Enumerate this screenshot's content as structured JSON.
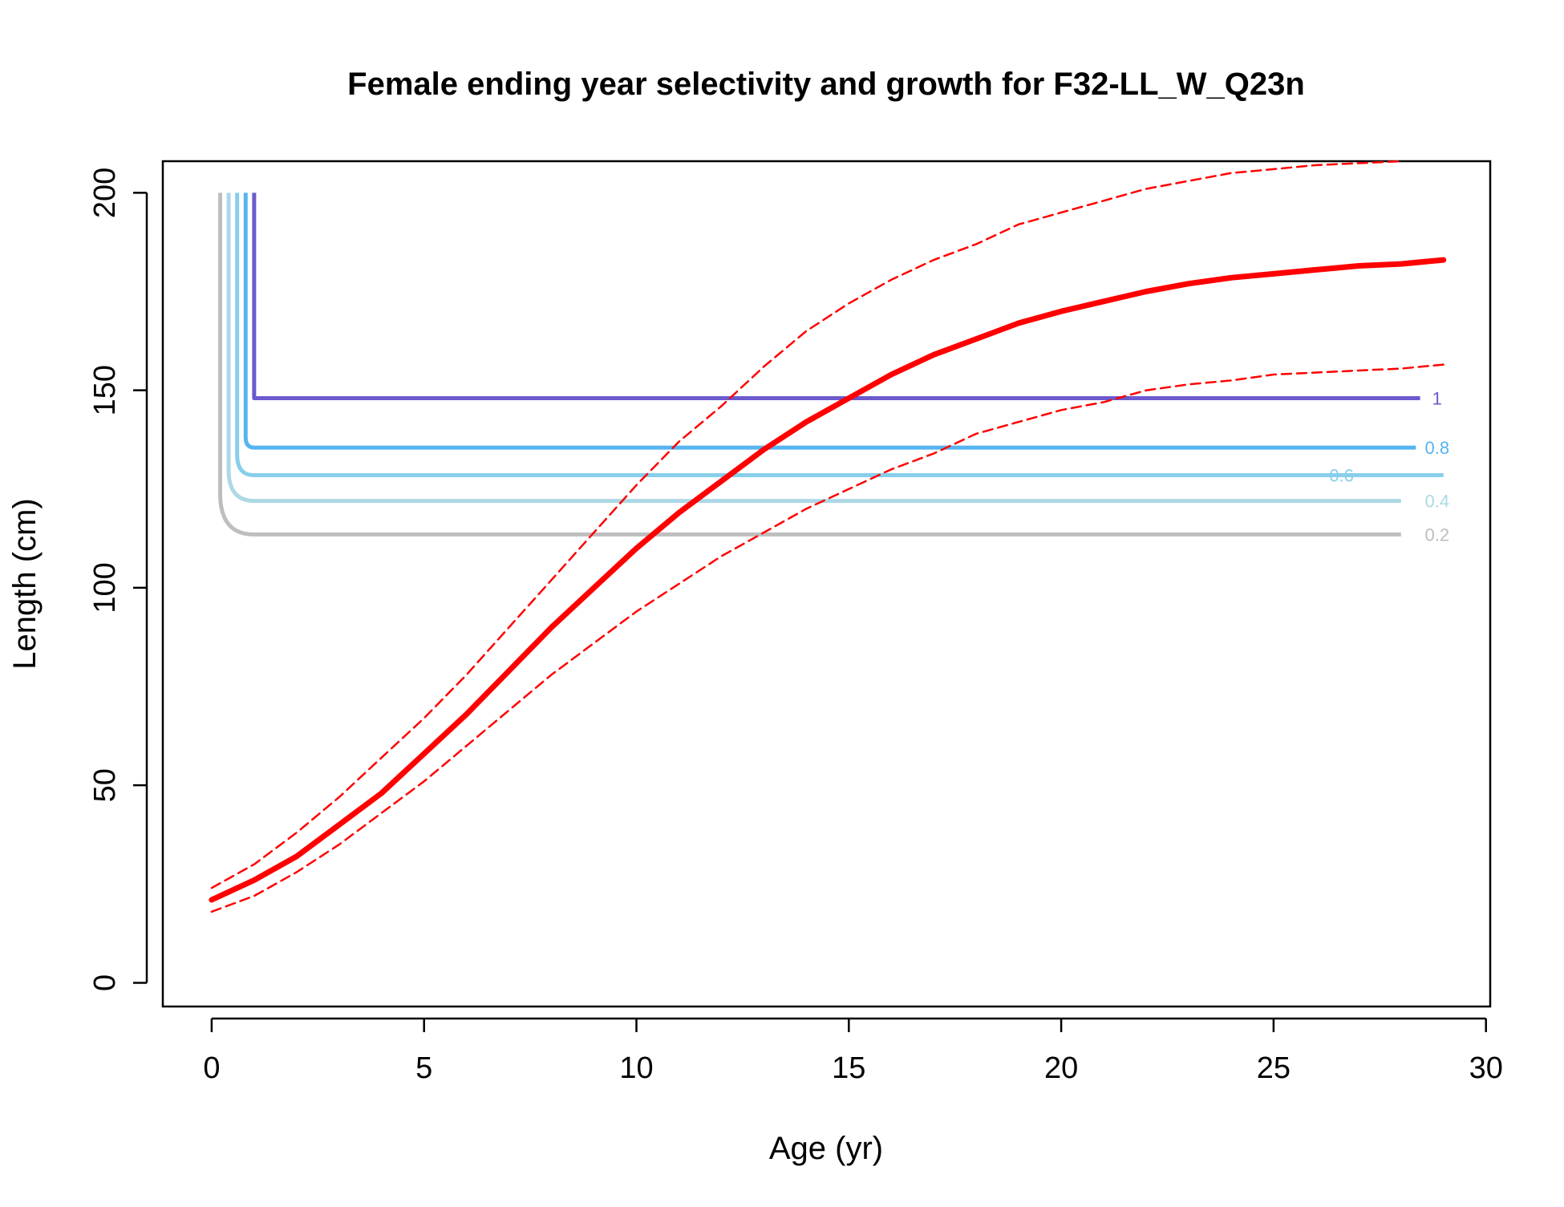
{
  "chart_data": {
    "type": "line",
    "title": "Female ending year selectivity and growth for F32-LL_W_Q23n",
    "xlabel": "Age (yr)",
    "ylabel": "Length (cm)",
    "xlim": [
      -1.15,
      30.1
    ],
    "ylim": [
      -6,
      208
    ],
    "xticks": [
      "0",
      "5",
      "10",
      "15",
      "20",
      "25",
      "30"
    ],
    "yticks": [
      "0",
      "50",
      "100",
      "150",
      "200"
    ],
    "grid": false,
    "legend": "none",
    "series": [
      {
        "role": "growth-mean",
        "color": "#ff0000",
        "style": "solid-thick",
        "x": [
          0,
          1,
          2,
          3,
          4,
          5,
          6,
          7,
          8,
          9,
          10,
          11,
          12,
          13,
          14,
          15,
          16,
          17,
          18,
          19,
          20,
          21,
          22,
          23,
          24,
          25,
          26,
          27,
          28,
          29
        ],
        "y": [
          21,
          26,
          32,
          40,
          48,
          58,
          68,
          79,
          90,
          100,
          110,
          119,
          127,
          135,
          142,
          148,
          154,
          159,
          163,
          167,
          170,
          172.5,
          175,
          177,
          178.5,
          179.5,
          180.5,
          181.5,
          182,
          183
        ]
      },
      {
        "role": "growth-upper",
        "color": "#ff0000",
        "style": "dashed",
        "x": [
          0,
          1,
          2,
          3,
          4,
          5,
          6,
          7,
          8,
          9,
          10,
          11,
          12,
          13,
          14,
          15,
          16,
          17,
          18,
          19,
          20,
          21,
          22,
          23,
          24,
          25,
          26,
          27,
          28
        ],
        "y": [
          24,
          30,
          38,
          47,
          57,
          67,
          78,
          90,
          102,
          114,
          126,
          137,
          146,
          156,
          165,
          172,
          178,
          183,
          187,
          192,
          195,
          198,
          201,
          203,
          205,
          206,
          207,
          207.5,
          208
        ]
      },
      {
        "role": "growth-lower",
        "color": "#ff0000",
        "style": "dashed",
        "x": [
          0,
          1,
          2,
          3,
          4,
          5,
          6,
          7,
          8,
          9,
          10,
          11,
          12,
          13,
          14,
          15,
          16,
          17,
          18,
          19,
          20,
          21,
          22,
          23,
          24,
          25,
          26,
          27,
          28,
          29
        ],
        "y": [
          18,
          22,
          28,
          35,
          43,
          51,
          60,
          69,
          78,
          86,
          94,
          101,
          108,
          114,
          120,
          125,
          130,
          134,
          139,
          142,
          145,
          147,
          150,
          151.5,
          152.5,
          154,
          154.5,
          155,
          155.5,
          156.5
        ]
      }
    ],
    "selectivity_contours": [
      {
        "level": "1",
        "length": 148,
        "color": "#6a5acd",
        "label_color": "#6a5acd"
      },
      {
        "level": "0.8",
        "length": 135.5,
        "color": "#56b4f0",
        "label_color": "#56b4f0"
      },
      {
        "level": "0.6",
        "length": 128.5,
        "color": "#87ceeb",
        "label_color": "#87ceeb"
      },
      {
        "level": "0.4",
        "length": 122,
        "color": "#add8e6",
        "label_color": "#add8e6"
      },
      {
        "level": "0.2",
        "length": 113.5,
        "color": "#bebebe",
        "label_color": "#bebebe"
      }
    ]
  }
}
